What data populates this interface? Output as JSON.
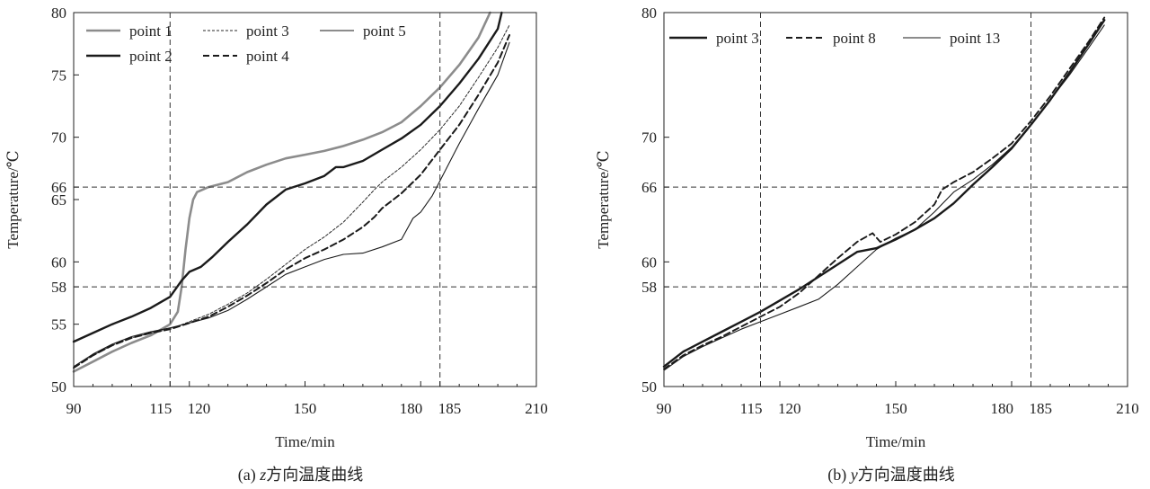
{
  "charts": [
    {
      "caption_prefix": "(a) ",
      "caption_var": "z",
      "caption_rest": "方向温度曲线",
      "chart_data": {
        "type": "line",
        "xlabel": "Time/min",
        "ylabel": "Temperature/℃",
        "xlim": [
          90,
          210
        ],
        "ylim": [
          50,
          80
        ],
        "xticks": [
          90,
          115,
          120,
          150,
          180,
          185,
          210
        ],
        "xtick_labels": [
          "90",
          "115",
          "120",
          "150",
          "180",
          "185",
          "210"
        ],
        "yticks": [
          50,
          55,
          58,
          60,
          65,
          66,
          70,
          75,
          80
        ],
        "ytick_labels": [
          "50",
          "55",
          "58",
          "60",
          "65",
          "66",
          "70",
          "75",
          "80"
        ],
        "ref_lines": {
          "x": [
            115,
            185
          ],
          "y": [
            58,
            66
          ]
        },
        "grid": false,
        "legend_position": "top",
        "series": [
          {
            "name": "point 1",
            "color": "#8c8c8c",
            "dash": "solid",
            "width": 2.6,
            "points": [
              [
                90,
                51.2
              ],
              [
                95,
                52.0
              ],
              [
                100,
                52.8
              ],
              [
                105,
                53.5
              ],
              [
                110,
                54.1
              ],
              [
                115,
                55.0
              ],
              [
                117,
                56.0
              ],
              [
                118,
                58.0
              ],
              [
                119,
                61.0
              ],
              [
                120,
                63.5
              ],
              [
                121,
                65.0
              ],
              [
                122,
                65.6
              ],
              [
                125,
                66.0
              ],
              [
                130,
                66.4
              ],
              [
                135,
                67.2
              ],
              [
                140,
                67.8
              ],
              [
                145,
                68.3
              ],
              [
                150,
                68.6
              ],
              [
                155,
                68.9
              ],
              [
                160,
                69.3
              ],
              [
                165,
                69.8
              ],
              [
                170,
                70.4
              ],
              [
                175,
                71.2
              ],
              [
                180,
                72.5
              ],
              [
                185,
                74.0
              ],
              [
                190,
                75.8
              ],
              [
                195,
                78.0
              ],
              [
                198,
                80.0
              ]
            ]
          },
          {
            "name": "point 2",
            "color": "#1a1a1a",
            "dash": "solid",
            "width": 2.4,
            "points": [
              [
                90,
                53.6
              ],
              [
                95,
                54.3
              ],
              [
                100,
                55.0
              ],
              [
                105,
                55.6
              ],
              [
                110,
                56.3
              ],
              [
                115,
                57.2
              ],
              [
                118,
                58.5
              ],
              [
                120,
                59.2
              ],
              [
                123,
                59.6
              ],
              [
                126,
                60.4
              ],
              [
                130,
                61.6
              ],
              [
                135,
                63.0
              ],
              [
                140,
                64.6
              ],
              [
                145,
                65.8
              ],
              [
                150,
                66.3
              ],
              [
                155,
                66.9
              ],
              [
                158,
                67.6
              ],
              [
                160,
                67.6
              ],
              [
                165,
                68.1
              ],
              [
                170,
                69.0
              ],
              [
                175,
                69.9
              ],
              [
                180,
                71.0
              ],
              [
                185,
                72.5
              ],
              [
                190,
                74.3
              ],
              [
                195,
                76.3
              ],
              [
                200,
                78.7
              ],
              [
                201,
                80.0
              ]
            ]
          },
          {
            "name": "point 3",
            "color": "#2a2a2a",
            "dash": "3 2",
            "width": 1.0,
            "points": [
              [
                90,
                51.5
              ],
              [
                95,
                52.5
              ],
              [
                100,
                53.3
              ],
              [
                105,
                53.9
              ],
              [
                110,
                54.3
              ],
              [
                115,
                54.6
              ],
              [
                120,
                55.2
              ],
              [
                125,
                55.8
              ],
              [
                130,
                56.6
              ],
              [
                135,
                57.5
              ],
              [
                140,
                58.6
              ],
              [
                145,
                59.8
              ],
              [
                150,
                61.0
              ],
              [
                155,
                62.0
              ],
              [
                160,
                63.2
              ],
              [
                165,
                64.8
              ],
              [
                168,
                65.8
              ],
              [
                170,
                66.4
              ],
              [
                175,
                67.6
              ],
              [
                180,
                69.0
              ],
              [
                185,
                70.6
              ],
              [
                190,
                72.5
              ],
              [
                195,
                74.8
              ],
              [
                200,
                77.2
              ],
              [
                203,
                79.0
              ]
            ]
          },
          {
            "name": "point 4",
            "color": "#1a1a1a",
            "dash": "7 4",
            "width": 2.0,
            "points": [
              [
                90,
                51.5
              ],
              [
                95,
                52.5
              ],
              [
                100,
                53.3
              ],
              [
                105,
                53.9
              ],
              [
                110,
                54.3
              ],
              [
                115,
                54.6
              ],
              [
                120,
                55.1
              ],
              [
                125,
                55.6
              ],
              [
                130,
                56.4
              ],
              [
                135,
                57.3
              ],
              [
                140,
                58.3
              ],
              [
                145,
                59.4
              ],
              [
                150,
                60.3
              ],
              [
                155,
                61.0
              ],
              [
                160,
                61.8
              ],
              [
                165,
                62.8
              ],
              [
                168,
                63.6
              ],
              [
                170,
                64.3
              ],
              [
                175,
                65.5
              ],
              [
                180,
                67.0
              ],
              [
                185,
                69.0
              ],
              [
                190,
                71.0
              ],
              [
                195,
                73.4
              ],
              [
                200,
                76.0
              ],
              [
                203,
                78.2
              ]
            ]
          },
          {
            "name": "point 5",
            "color": "#1a1a1a",
            "dash": "solid",
            "width": 1.1,
            "points": [
              [
                90,
                51.6
              ],
              [
                95,
                52.6
              ],
              [
                100,
                53.4
              ],
              [
                105,
                54.0
              ],
              [
                110,
                54.4
              ],
              [
                115,
                54.7
              ],
              [
                120,
                55.1
              ],
              [
                125,
                55.5
              ],
              [
                130,
                56.1
              ],
              [
                135,
                57.0
              ],
              [
                140,
                58.0
              ],
              [
                145,
                59.0
              ],
              [
                150,
                59.6
              ],
              [
                155,
                60.2
              ],
              [
                160,
                60.6
              ],
              [
                165,
                60.7
              ],
              [
                170,
                61.2
              ],
              [
                175,
                61.8
              ],
              [
                178,
                63.5
              ],
              [
                180,
                64.0
              ],
              [
                183,
                65.3
              ],
              [
                185,
                66.5
              ],
              [
                190,
                69.5
              ],
              [
                195,
                72.3
              ],
              [
                200,
                75.0
              ],
              [
                203,
                77.6
              ]
            ]
          }
        ]
      }
    },
    {
      "caption_prefix": "(b) ",
      "caption_var": "y",
      "caption_rest": "方向温度曲线",
      "chart_data": {
        "type": "line",
        "xlabel": "Time/min",
        "ylabel": "Temperature/℃",
        "xlim": [
          90,
          210
        ],
        "ylim": [
          50,
          80
        ],
        "xticks": [
          90,
          115,
          120,
          150,
          180,
          185,
          210
        ],
        "xtick_labels": [
          "90",
          "115",
          "120",
          "150",
          "180",
          "185",
          "210"
        ],
        "yticks": [
          50,
          58,
          60,
          66,
          70,
          80
        ],
        "ytick_labels": [
          "50",
          "58",
          "60",
          "66",
          "70",
          "80"
        ],
        "ref_lines": {
          "x": [
            115,
            185
          ],
          "y": [
            58,
            66
          ]
        },
        "grid": false,
        "legend_position": "top",
        "series": [
          {
            "name": "point 3",
            "color": "#1a1a1a",
            "dash": "solid",
            "width": 2.4,
            "points": [
              [
                90,
                51.6
              ],
              [
                95,
                52.8
              ],
              [
                100,
                53.6
              ],
              [
                105,
                54.4
              ],
              [
                110,
                55.2
              ],
              [
                115,
                56.0
              ],
              [
                120,
                56.9
              ],
              [
                125,
                57.8
              ],
              [
                130,
                58.8
              ],
              [
                135,
                59.8
              ],
              [
                140,
                60.8
              ],
              [
                145,
                61.1
              ],
              [
                150,
                61.8
              ],
              [
                155,
                62.6
              ],
              [
                160,
                63.5
              ],
              [
                165,
                64.7
              ],
              [
                170,
                66.2
              ],
              [
                175,
                67.6
              ],
              [
                180,
                69.1
              ],
              [
                185,
                71.0
              ],
              [
                190,
                73.0
              ],
              [
                195,
                75.2
              ],
              [
                200,
                77.5
              ],
              [
                204,
                79.4
              ]
            ]
          },
          {
            "name": "point 8",
            "color": "#1a1a1a",
            "dash": "7 4",
            "width": 1.9,
            "points": [
              [
                90,
                51.4
              ],
              [
                95,
                52.5
              ],
              [
                100,
                53.3
              ],
              [
                105,
                54.0
              ],
              [
                110,
                54.8
              ],
              [
                115,
                55.6
              ],
              [
                120,
                56.4
              ],
              [
                125,
                57.5
              ],
              [
                130,
                58.9
              ],
              [
                135,
                60.3
              ],
              [
                140,
                61.6
              ],
              [
                144,
                62.3
              ],
              [
                146,
                61.6
              ],
              [
                150,
                62.2
              ],
              [
                155,
                63.2
              ],
              [
                160,
                64.6
              ],
              [
                162,
                65.8
              ],
              [
                165,
                66.4
              ],
              [
                170,
                67.2
              ],
              [
                175,
                68.3
              ],
              [
                180,
                69.5
              ],
              [
                185,
                71.3
              ],
              [
                190,
                73.3
              ],
              [
                195,
                75.5
              ],
              [
                200,
                77.7
              ],
              [
                204,
                79.6
              ]
            ]
          },
          {
            "name": "point 13",
            "color": "#1a1a1a",
            "dash": "solid",
            "width": 1.1,
            "points": [
              [
                90,
                51.3
              ],
              [
                95,
                52.4
              ],
              [
                100,
                53.2
              ],
              [
                105,
                53.9
              ],
              [
                110,
                54.6
              ],
              [
                115,
                55.2
              ],
              [
                120,
                55.8
              ],
              [
                125,
                56.4
              ],
              [
                130,
                57.0
              ],
              [
                135,
                58.2
              ],
              [
                140,
                59.6
              ],
              [
                145,
                61.0
              ],
              [
                150,
                61.9
              ],
              [
                155,
                62.6
              ],
              [
                160,
                64.0
              ],
              [
                165,
                65.6
              ],
              [
                170,
                66.6
              ],
              [
                175,
                67.8
              ],
              [
                180,
                69.2
              ],
              [
                185,
                71.0
              ],
              [
                190,
                73.0
              ],
              [
                195,
                75.0
              ],
              [
                200,
                77.2
              ],
              [
                204,
                79.0
              ]
            ]
          }
        ]
      }
    }
  ]
}
